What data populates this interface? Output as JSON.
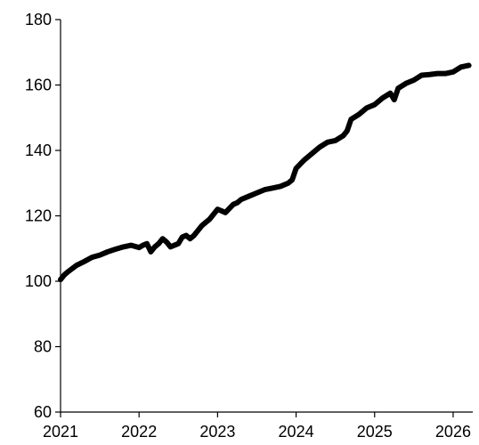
{
  "chart_data": {
    "type": "line",
    "title": "",
    "xlabel": "",
    "ylabel": "",
    "xlim": [
      2021.0,
      2026.25
    ],
    "ylim": [
      60,
      180
    ],
    "x_ticks": [
      2021,
      2022,
      2023,
      2024,
      2025,
      2026
    ],
    "x_tick_labels": [
      "2021",
      "2022",
      "2023",
      "2024",
      "2025",
      "2026"
    ],
    "y_ticks": [
      60,
      80,
      100,
      120,
      140,
      160,
      180
    ],
    "y_tick_labels": [
      "60",
      "80",
      "100",
      "120",
      "140",
      "160",
      "180"
    ],
    "grid": false,
    "legend": "none",
    "line_color": "#000000",
    "series": [
      {
        "x": [
          2021.0,
          2021.05,
          2021.1,
          2021.2,
          2021.3,
          2021.4,
          2021.5,
          2021.6,
          2021.7,
          2021.8,
          2021.9,
          2022.0,
          2022.05,
          2022.1,
          2022.15,
          2022.2,
          2022.25,
          2022.3,
          2022.35,
          2022.4,
          2022.45,
          2022.5,
          2022.55,
          2022.6,
          2022.65,
          2022.7,
          2022.75,
          2022.8,
          2022.85,
          2022.9,
          2022.95,
          2023.0,
          2023.1,
          2023.2,
          2023.25,
          2023.3,
          2023.4,
          2023.5,
          2023.6,
          2023.7,
          2023.8,
          2023.9,
          2023.95,
          2024.0,
          2024.1,
          2024.2,
          2024.3,
          2024.4,
          2024.5,
          2024.6,
          2024.65,
          2024.7,
          2024.8,
          2024.9,
          2025.0,
          2025.1,
          2025.2,
          2025.25,
          2025.3,
          2025.4,
          2025.5,
          2025.6,
          2025.7,
          2025.8,
          2025.9,
          2026.0,
          2026.1,
          2026.2
        ],
        "values": [
          100.5,
          102.0,
          103.0,
          104.8,
          106.0,
          107.3,
          108.0,
          109.0,
          109.8,
          110.5,
          111.0,
          110.3,
          111.0,
          111.5,
          109.0,
          110.5,
          111.5,
          113.0,
          112.0,
          110.5,
          111.0,
          111.5,
          113.5,
          114.0,
          113.0,
          114.0,
          115.5,
          117.0,
          118.0,
          119.0,
          120.5,
          122.0,
          121.0,
          123.5,
          124.0,
          125.0,
          126.0,
          127.0,
          128.0,
          128.5,
          129.0,
          130.0,
          131.0,
          134.5,
          137.0,
          139.0,
          141.0,
          142.5,
          143.0,
          144.5,
          146.0,
          149.5,
          151.0,
          153.0,
          154.0,
          156.0,
          157.5,
          155.5,
          159.0,
          160.5,
          161.5,
          163.0,
          163.2,
          163.5,
          163.5,
          164.0,
          165.5,
          166.0
        ]
      }
    ]
  }
}
